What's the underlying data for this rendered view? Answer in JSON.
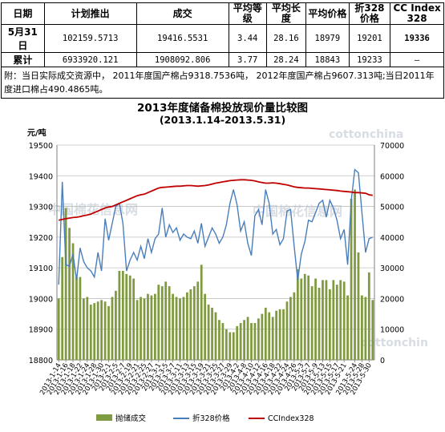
{
  "table": {
    "headers": [
      "日期",
      "计划推出",
      "成交",
      "平均等级",
      "平均长度",
      "平均价格",
      "折328价格",
      "CC Index 328"
    ],
    "rows": [
      {
        "date": "5月31日",
        "plan": "102159.5713",
        "deal": "19416.5531",
        "grade": "3.44",
        "length": "28.16",
        "price": "18979",
        "p328": "19201",
        "cc": "19336"
      },
      {
        "date": "累计",
        "plan": "6933920.121",
        "deal": "1908092.806",
        "grade": "3.77",
        "length": "28.24",
        "price": "18843",
        "p328": "19233",
        "cc": "–"
      }
    ],
    "note": "附：当日实际成交资源中， 2011年度国产棉占9318.7536吨， 2012年度国产棉占9607.313吨;当日2011年度进口棉占490.4865吨。"
  },
  "watermarks": [
    "cottonchina",
    "中国棉花信息网",
    "cottonchin"
  ],
  "chart_data": {
    "type": "bar",
    "title": "2013年度储备棉投放现价量比较图",
    "subtitle": "(2013.1.14-2013.5.31)",
    "ylabel": "元/吨",
    "ylim": [
      18800,
      19500
    ],
    "yticks": [
      18800,
      18900,
      19000,
      19100,
      19200,
      19300,
      19400,
      19500
    ],
    "y2lim": [
      0,
      70000
    ],
    "y2ticks": [
      0,
      10000,
      20000,
      30000,
      40000,
      50000,
      60000,
      70000
    ],
    "x": [
      "2013-1-14",
      "2013-1-15",
      "2013-1-16",
      "2013-1-17",
      "2013-1-18",
      "2013-1-21",
      "2013-1-22",
      "2013-1-23",
      "2013-1-24",
      "2013-1-25",
      "2013-1-28",
      "2013-1-29",
      "2013-1-30",
      "2013-1-31",
      "2013-2-1",
      "2013-2-4",
      "2013-2-5",
      "2013-2-6",
      "2013-2-7",
      "2013-2-18",
      "2013-2-19",
      "2013-2-20",
      "2013-2-21",
      "2013-2-22",
      "2013-2-25",
      "2013-2-26",
      "2013-2-27",
      "2013-2-28",
      "2013-3-1",
      "2013-3-4",
      "2013-3-5",
      "2013-3-6",
      "2013-3-7",
      "2013-3-8",
      "2013-3-11",
      "2013-3-12",
      "2013-3-13",
      "2013-3-14",
      "2013-3-15",
      "2013-3-18",
      "2013-3-19",
      "2013-3-20",
      "2013-3-21",
      "2013-3-22",
      "2013-3-25",
      "2013-3-26",
      "2013-3-27",
      "2013-3-28",
      "2013-3-29",
      "2013-4-1",
      "2013-4-2",
      "2013-4-3",
      "2013-4-8",
      "2013-4-9",
      "2013-4-10",
      "2013-4-11",
      "2013-4-12",
      "2013-4-15",
      "2013-4-16",
      "2013-4-17",
      "2013-4-18",
      "2013-4-19",
      "2013-4-22",
      "2013-4-23",
      "2013-4-24",
      "2013-4-25",
      "2013-4-26",
      "2013-5-2",
      "2013-5-3",
      "2013-5-6",
      "2013-5-7",
      "2013-5-8",
      "2013-5-9",
      "2013-5-10",
      "2013-5-13",
      "2013-5-14",
      "2013-5-15",
      "2013-5-16",
      "2013-5-17",
      "2013-5-20",
      "2013-5-21",
      "2013-5-22",
      "2013-5-23",
      "2013-5-24",
      "2013-5-27",
      "2013-5-28",
      "2013-5-29",
      "2013-5-30",
      "2013-5-31"
    ],
    "xticks": [
      "2013-1-14",
      "2013-1-16",
      "2013-1-18",
      "2013-1-22",
      "2013-1-24",
      "2013-1-28",
      "2013-1-30",
      "2013-2-1",
      "2013-2-5",
      "2013-2-7",
      "2013-2-19",
      "2013-2-21",
      "2013-2-25",
      "2013-2-27",
      "2013-3-1",
      "2013-3-5",
      "2013-3-7",
      "2013-3-11",
      "2013-3-13",
      "2013-3-15",
      "2013-3-19",
      "2013-3-21",
      "2013-3-25",
      "2013-3-27",
      "2013-3-29",
      "2013-4-2",
      "2013-4-8",
      "2013-4-10",
      "2013-4-12",
      "2013-4-16",
      "2013-4-18",
      "2013-4-22",
      "2013-4-24",
      "2013-4-26",
      "2013-5-3",
      "2013-5-7",
      "2013-5-9",
      "2013-5-13",
      "2013-5-15",
      "2013-5-17",
      "2013-5-21",
      "2013-5-24",
      "2013-5-28",
      "2013-5-30"
    ],
    "series": [
      {
        "name": "抛储成交",
        "type": "bar",
        "axis": "right",
        "color": "#7f9a3f",
        "values": [
          20000,
          33500,
          49500,
          43000,
          38000,
          27000,
          27000,
          20000,
          20500,
          18000,
          18500,
          19000,
          19500,
          19000,
          17500,
          20500,
          22500,
          29000,
          29000,
          28000,
          27500,
          26500,
          19500,
          20500,
          20000,
          21500,
          21000,
          21500,
          24500,
          24000,
          25500,
          24000,
          21500,
          20500,
          20000,
          20500,
          22000,
          23000,
          24000,
          25500,
          31000,
          21500,
          18000,
          17000,
          15500,
          13000,
          12000,
          10000,
          9000,
          9000,
          11000,
          12000,
          13000,
          14000,
          12000,
          12000,
          13500,
          15000,
          17000,
          15500,
          14000,
          16000,
          16500,
          16500,
          19000,
          20500,
          22000,
          29500,
          26500,
          28000,
          27500,
          24000,
          26500,
          23500,
          26000,
          26000,
          23000,
          26000,
          24500,
          26000,
          25500,
          21000,
          52500,
          55500,
          35000,
          21000,
          20500,
          28500,
          19500
        ]
      },
      {
        "name": "折328价格",
        "type": "line",
        "axis": "left",
        "color": "#4a7ebb",
        "values": [
          19045,
          19380,
          19110,
          19105,
          19145,
          19060,
          19165,
          19120,
          19100,
          19090,
          19070,
          19150,
          19090,
          19260,
          19190,
          19245,
          19300,
          19310,
          19245,
          19090,
          19125,
          19150,
          19125,
          19170,
          19130,
          19195,
          19150,
          19195,
          19210,
          19295,
          19200,
          19240,
          19215,
          19230,
          19190,
          19210,
          19200,
          19195,
          19220,
          19180,
          19245,
          19170,
          19200,
          19230,
          19210,
          19180,
          19200,
          19240,
          19310,
          19355,
          19305,
          19220,
          19250,
          19180,
          19140,
          19270,
          19290,
          19240,
          19355,
          19310,
          19210,
          19225,
          19175,
          19195,
          19285,
          19290,
          19170,
          19060,
          19145,
          19185,
          19255,
          19250,
          19280,
          19310,
          19320,
          19265,
          19320,
          19295,
          19255,
          19195,
          19225,
          19110,
          19320,
          19420,
          19410,
          19280,
          19150,
          19195,
          19200
        ]
      },
      {
        "name": "CCIndex328",
        "type": "line",
        "axis": "left",
        "color": "#c00000",
        "values": [
          19255,
          19258,
          19260,
          19262,
          19264,
          19265,
          19267,
          19270,
          19272,
          19275,
          19280,
          19285,
          19290,
          19295,
          19298,
          19300,
          19305,
          19310,
          19315,
          19320,
          19325,
          19330,
          19335,
          19338,
          19340,
          19345,
          19350,
          19355,
          19360,
          19362,
          19363,
          19364,
          19365,
          19366,
          19366,
          19367,
          19368,
          19368,
          19367,
          19366,
          19367,
          19368,
          19370,
          19373,
          19376,
          19378,
          19380,
          19382,
          19384,
          19385,
          19386,
          19387,
          19387,
          19386,
          19385,
          19383,
          19380,
          19378,
          19376,
          19376,
          19377,
          19376,
          19374,
          19372,
          19370,
          19367,
          19364,
          19362,
          19361,
          19360,
          19360,
          19359,
          19358,
          19357,
          19356,
          19355,
          19354,
          19353,
          19352,
          19350,
          19349,
          19348,
          19347,
          19345,
          19345,
          19344,
          19343,
          19338,
          19336
        ]
      }
    ],
    "legend": "bottom"
  }
}
